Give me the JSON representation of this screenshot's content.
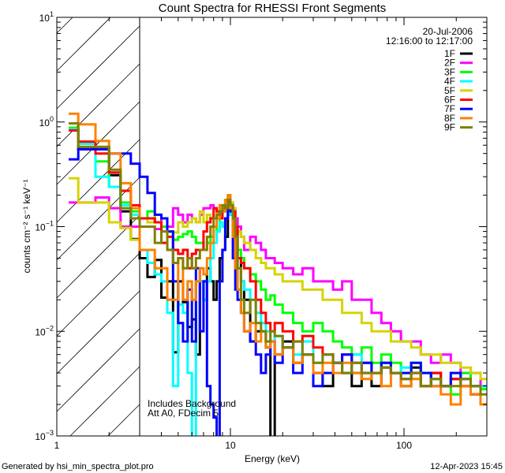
{
  "chart_data": {
    "type": "line",
    "step": true,
    "title": "Count Spectra for RHESSI Front Segments",
    "xlabel": "Energy (keV)",
    "ylabel": "counts cm⁻² s⁻¹ keV⁻¹",
    "xscale": "log",
    "yscale": "log",
    "xlim": [
      1,
      300
    ],
    "ylim": [
      0.001,
      10
    ],
    "x_ticks": [
      {
        "value": 1,
        "label": "1"
      },
      {
        "value": 10,
        "label": "10"
      },
      {
        "value": 100,
        "label": "100"
      }
    ],
    "y_ticks": [
      {
        "value": 10,
        "base": "10",
        "exp": "1"
      },
      {
        "value": 1,
        "base": "10",
        "exp": "0"
      },
      {
        "value": 0.1,
        "base": "10",
        "exp": "−1"
      },
      {
        "value": 0.01,
        "base": "10",
        "exp": "−2"
      },
      {
        "value": 0.001,
        "base": "10",
        "exp": "−3"
      }
    ],
    "shaded_region": {
      "from": 1,
      "to": 3,
      "style": "hatched"
    },
    "annotations": [
      "Includes Background",
      "Att A0, FDecim 5"
    ],
    "legend": {
      "placement": "top-right",
      "date": "20-Jul-2006",
      "time_range": "12:16:00 to 12:17:00"
    },
    "energy_edges": [
      1.17,
      1.33,
      1.67,
      2,
      2.33,
      2.67,
      3,
      3.33,
      3.67,
      4,
      4.33,
      4.67,
      5,
      5.33,
      5.67,
      6,
      6.33,
      6.67,
      7,
      7.33,
      7.67,
      8,
      8.33,
      8.67,
      9,
      9.33,
      9.67,
      10,
      10.33,
      10.67,
      11,
      11.5,
      12,
      13,
      14,
      15,
      16,
      17,
      18,
      20,
      23,
      26,
      30,
      34,
      39,
      44,
      50,
      57,
      65,
      74,
      84,
      96,
      110,
      125,
      143,
      163,
      186,
      212,
      242,
      276,
      300
    ],
    "series": [
      {
        "name": "1F",
        "color": "#000000",
        "values": [
          0.85,
          0.55,
          0.55,
          0.31,
          0.14,
          0.076,
          0.05,
          0.033,
          0.048,
          0.021,
          0.03,
          0.0063,
          0.03,
          0.019,
          0.011,
          0.013,
          0.006,
          0.03,
          0.02,
          0.04,
          0.03,
          0.02,
          0.03,
          0.05,
          0.06,
          0.08,
          0.13,
          0.15,
          0.12,
          0.09,
          0.05,
          0.03,
          0.02,
          0.008,
          0.01,
          0.01,
          0.007,
          0.0005,
          0.006,
          0.008,
          0.005,
          0.006,
          0.004,
          0.003,
          0.005,
          0.004,
          0.003,
          0.004,
          0.003,
          0.005,
          0.004,
          0.003,
          0.0045,
          0.003,
          0.004,
          0.003,
          0.0035,
          0.003,
          0.0025,
          0.002
        ]
      },
      {
        "name": "2F",
        "color": "#ff00ff",
        "values": [
          0.17,
          0.17,
          0.19,
          0.15,
          0.1,
          0.1,
          0.1,
          0.1,
          0.095,
          0.12,
          0.1,
          0.15,
          0.13,
          0.11,
          0.13,
          0.12,
          0.11,
          0.13,
          0.15,
          0.15,
          0.16,
          0.15,
          0.13,
          0.12,
          0.14,
          0.15,
          0.16,
          0.17,
          0.15,
          0.12,
          0.1,
          0.08,
          0.06,
          0.08,
          0.07,
          0.06,
          0.05,
          0.05,
          0.045,
          0.04,
          0.035,
          0.04,
          0.03,
          0.03,
          0.025,
          0.03,
          0.02,
          0.02,
          0.015,
          0.012,
          0.01,
          0.008,
          0.008,
          0.006,
          0.005,
          0.006,
          0.005,
          0.004,
          0.004,
          0.003
        ]
      },
      {
        "name": "3F",
        "color": "#00ff00",
        "values": [
          0.88,
          0.62,
          0.42,
          0.24,
          0.17,
          0.14,
          0.12,
          0.14,
          0.11,
          0.1,
          0.09,
          0.075,
          0.08,
          0.085,
          0.09,
          0.08,
          0.07,
          0.07,
          0.06,
          0.07,
          0.08,
          0.1,
          0.09,
          0.12,
          0.15,
          0.18,
          0.19,
          0.16,
          0.12,
          0.08,
          0.06,
          0.05,
          0.04,
          0.035,
          0.03,
          0.025,
          0.02,
          0.022,
          0.018,
          0.015,
          0.012,
          0.01,
          0.012,
          0.01,
          0.008,
          0.007,
          0.006,
          0.007,
          0.005,
          0.006,
          0.005,
          0.004,
          0.005,
          0.004,
          0.0035,
          0.003,
          0.0025,
          0.004,
          0.003,
          0.0028
        ]
      },
      {
        "name": "4F",
        "color": "#00ffff",
        "values": [
          0.85,
          0.62,
          0.3,
          0.24,
          0.16,
          0.13,
          0.06,
          0.045,
          0.035,
          0.03,
          0.015,
          0.003,
          0.018,
          0.015,
          0.004,
          0.0004,
          0.03,
          0.03,
          0.02,
          0.03,
          0.05,
          0.07,
          0.09,
          0.11,
          0.1,
          0.12,
          0.14,
          0.13,
          0.1,
          0.06,
          0.04,
          0.03,
          0.025,
          0.02,
          0.015,
          0.012,
          0.01,
          0.008,
          0.009,
          0.007,
          0.006,
          0.008,
          0.005,
          0.006,
          0.005,
          0.004,
          0.006,
          0.005,
          0.004,
          0.005,
          0.004,
          0.0045,
          0.004,
          0.003,
          0.0035,
          0.003,
          0.004,
          0.003,
          0.0025,
          0.003
        ]
      },
      {
        "name": "5F",
        "color": "#d4d400",
        "values": [
          0.29,
          0.17,
          0.17,
          0.11,
          0.097,
          0.075,
          0.12,
          0.11,
          0.13,
          0.12,
          0.09,
          0.088,
          0.11,
          0.1,
          0.11,
          0.12,
          0.11,
          0.14,
          0.11,
          0.13,
          0.12,
          0.12,
          0.14,
          0.13,
          0.15,
          0.16,
          0.16,
          0.17,
          0.15,
          0.1,
          0.09,
          0.08,
          0.07,
          0.06,
          0.05,
          0.045,
          0.04,
          0.04,
          0.035,
          0.03,
          0.03,
          0.025,
          0.025,
          0.02,
          0.02,
          0.015,
          0.015,
          0.012,
          0.01,
          0.01,
          0.008,
          0.008,
          0.007,
          0.006,
          0.006,
          0.005,
          0.005,
          0.0045,
          0.004,
          0.0035
        ]
      },
      {
        "name": "6F",
        "color": "#ff0000",
        "values": [
          0.83,
          0.65,
          0.5,
          0.33,
          0.22,
          0.16,
          0.12,
          0.12,
          0.11,
          0.07,
          0.08,
          0.06,
          0.055,
          0.06,
          0.04,
          0.055,
          0.06,
          0.06,
          0.09,
          0.11,
          0.12,
          0.15,
          0.14,
          0.12,
          0.14,
          0.15,
          0.17,
          0.16,
          0.14,
          0.1,
          0.05,
          0.045,
          0.04,
          0.03,
          0.02,
          0.015,
          0.012,
          0.01,
          0.012,
          0.01,
          0.008,
          0.009,
          0.007,
          0.006,
          0.005,
          0.006,
          0.005,
          0.005,
          0.004,
          0.0045,
          0.004,
          0.0035,
          0.004,
          0.003,
          0.004,
          0.003,
          0.0035,
          0.003,
          0.0025,
          0.002
        ]
      },
      {
        "name": "7F",
        "color": "#0000ff",
        "values": [
          0.44,
          0.55,
          0.55,
          0.5,
          0.5,
          0.4,
          0.3,
          0.21,
          0.13,
          0.12,
          0.09,
          0.03,
          0.012,
          0.008,
          0.025,
          0.008,
          0.04,
          0.01,
          0.03,
          0.003,
          0.002,
          0.0015,
          0.0005,
          0.03,
          0.06,
          0.12,
          0.15,
          0.14,
          0.05,
          0.025,
          0.02,
          0.015,
          0.01,
          0.008,
          0.006,
          0.004,
          0.006,
          0.008,
          0.005,
          0.007,
          0.004,
          0.006,
          0.003,
          0.004,
          0.005,
          0.006,
          0.004,
          0.005,
          0.004,
          0.005,
          0.004,
          0.004,
          0.005,
          0.004,
          0.003,
          0.003,
          0.004,
          0.0035,
          0.003,
          0.002
        ]
      },
      {
        "name": "8F",
        "color": "#ff8000",
        "values": [
          1.2,
          0.95,
          0.66,
          0.5,
          0.26,
          0.15,
          0.06,
          0.06,
          0.04,
          0.04,
          0.02,
          0.02,
          0.05,
          0.02,
          0.03,
          0.02,
          0.03,
          0.04,
          0.035,
          0.05,
          0.07,
          0.1,
          0.12,
          0.16,
          0.14,
          0.18,
          0.2,
          0.15,
          0.08,
          0.04,
          0.025,
          0.015,
          0.01,
          0.012,
          0.008,
          0.01,
          0.007,
          0.008,
          0.006,
          0.007,
          0.005,
          0.006,
          0.004,
          0.005,
          0.004,
          0.005,
          0.004,
          0.0035,
          0.004,
          0.003,
          0.004,
          0.003,
          0.0035,
          0.003,
          0.003,
          0.0025,
          0.002,
          0.003,
          0.0025,
          0.002
        ]
      },
      {
        "name": "9F",
        "color": "#808000",
        "values": [
          0.97,
          0.58,
          0.58,
          0.35,
          0.15,
          0.12,
          0.1,
          0.1,
          0.07,
          0.09,
          0.06,
          0.045,
          0.05,
          0.04,
          0.05,
          0.04,
          0.05,
          0.06,
          0.06,
          0.08,
          0.1,
          0.12,
          0.13,
          0.14,
          0.16,
          0.15,
          0.18,
          0.16,
          0.12,
          0.08,
          0.04,
          0.02,
          0.015,
          0.02,
          0.012,
          0.01,
          0.008,
          0.01,
          0.009,
          0.007,
          0.008,
          0.006,
          0.005,
          0.006,
          0.005,
          0.004,
          0.005,
          0.004,
          0.004,
          0.0045,
          0.004,
          0.0035,
          0.004,
          0.003,
          0.0035,
          0.003,
          0.003,
          0.0035,
          0.003,
          0.0025
        ]
      }
    ]
  },
  "footer": {
    "generated_by": "Generated by hsi_min_spectra_plot.pro",
    "timestamp": "12-Apr-2023 15:45"
  }
}
